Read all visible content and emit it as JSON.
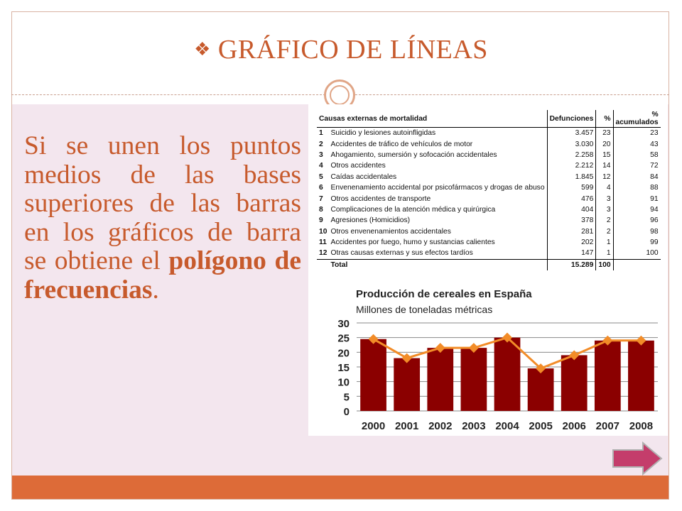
{
  "slide": {
    "title": "GRÁFICO DE LÍNEAS",
    "title_bullet": "❖",
    "body_part1": "Si se unen los puntos medios de las bases superiores de las barras en los gráficos de barra se obtiene el ",
    "body_bold1": "polígono de",
    "body_bold2": "frecuencias",
    "body_end": ".",
    "accent_color": "#c75a2c",
    "panel_color": "#f3e6ee",
    "bar_color": "#dd6b38"
  },
  "table": {
    "headers": [
      "Causas externas de mortalidad",
      "Defunciones",
      "%",
      "% acumulados"
    ],
    "rows": [
      {
        "n": "1",
        "cause": "Suicidio y lesiones autoinfligidas",
        "def": "3.457",
        "pct": "23",
        "acc": "23"
      },
      {
        "n": "2",
        "cause": "Accidentes de tráfico de vehículos de motor",
        "def": "3.030",
        "pct": "20",
        "acc": "43"
      },
      {
        "n": "3",
        "cause": "Ahogamiento, sumersión y sofocación accidentales",
        "def": "2.258",
        "pct": "15",
        "acc": "58"
      },
      {
        "n": "4",
        "cause": "Otros accidentes",
        "def": "2.212",
        "pct": "14",
        "acc": "72"
      },
      {
        "n": "5",
        "cause": "Caídas accidentales",
        "def": "1.845",
        "pct": "12",
        "acc": "84"
      },
      {
        "n": "6",
        "cause": "Envenenamiento accidental por psicofármacos y drogas de abuso",
        "def": "599",
        "pct": "4",
        "acc": "88"
      },
      {
        "n": "7",
        "cause": "Otros accidentes de transporte",
        "def": "476",
        "pct": "3",
        "acc": "91"
      },
      {
        "n": "8",
        "cause": "Complicaciones de la atención médica y quirúrgica",
        "def": "404",
        "pct": "3",
        "acc": "94"
      },
      {
        "n": "9",
        "cause": "Agresiones (Homicidios)",
        "def": "378",
        "pct": "2",
        "acc": "96"
      },
      {
        "n": "10",
        "cause": "Otros envenenamientos accidentales",
        "def": "281",
        "pct": "2",
        "acc": "98"
      },
      {
        "n": "11",
        "cause": "Accidentes por fuego, humo y sustancias calientes",
        "def": "202",
        "pct": "1",
        "acc": "99"
      },
      {
        "n": "12",
        "cause": "Otras causas externas y sus efectos tardíos",
        "def": "147",
        "pct": "1",
        "acc": "100"
      }
    ],
    "total": {
      "label": "Total",
      "def": "15.289",
      "pct": "100",
      "acc": ""
    }
  },
  "chart_data": {
    "type": "bar",
    "title": "Producción de cereales en España",
    "subtitle": "Millones de toneladas métricas",
    "categories": [
      "2000",
      "2001",
      "2002",
      "2003",
      "2004",
      "2005",
      "2006",
      "2007",
      "2008"
    ],
    "series": [
      {
        "values": [
          24.5,
          18,
          21.5,
          21.5,
          25,
          14.5,
          19,
          24,
          24
        ],
        "color": "#8b0000"
      },
      {
        "values": [
          24.5,
          18,
          21.5,
          21.5,
          25,
          14.5,
          19,
          24,
          24
        ],
        "color": "#f28c28",
        "kind": "line"
      }
    ],
    "ylim": [
      0,
      30
    ],
    "yticks": [
      "0",
      "5",
      "10",
      "15",
      "20",
      "25",
      "30"
    ],
    "grid": true
  }
}
